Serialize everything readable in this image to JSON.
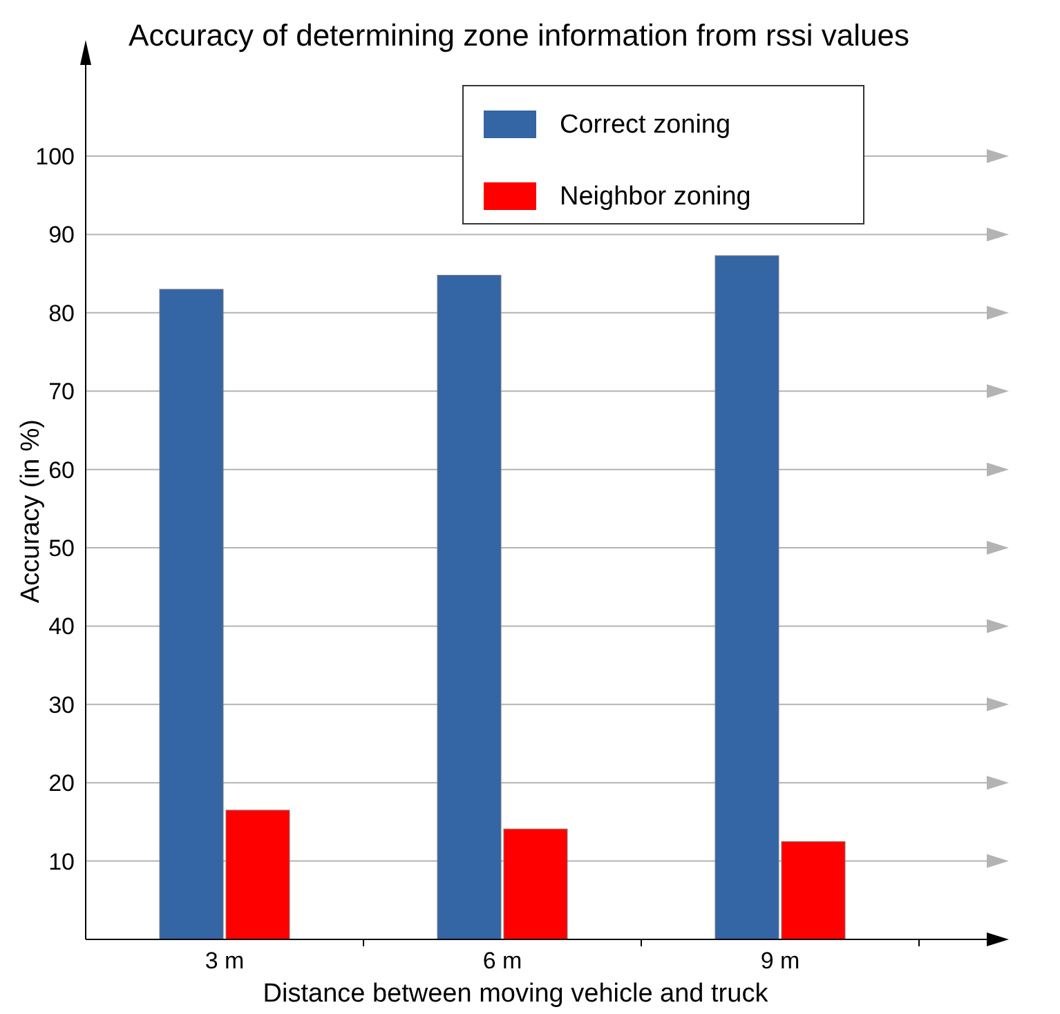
{
  "chart_data": {
    "type": "bar",
    "title": "Accuracy of determining zone information from rssi values",
    "xlabel": "Distance between moving vehicle and truck",
    "ylabel": "Accuracy (in %)",
    "categories": [
      "3 m",
      "6 m",
      "9 m"
    ],
    "series": [
      {
        "name": "Correct zoning",
        "color": "#3465a4",
        "values": [
          83,
          84.8,
          87.3
        ]
      },
      {
        "name": "Neighbor zoning",
        "color": "#ff0000",
        "values": [
          16.5,
          14.1,
          12.5
        ]
      }
    ],
    "ylim": [
      0,
      112
    ],
    "yticks": [
      10,
      20,
      30,
      40,
      50,
      60,
      70,
      80,
      90,
      100
    ],
    "grid": "y",
    "legend": "top right"
  }
}
